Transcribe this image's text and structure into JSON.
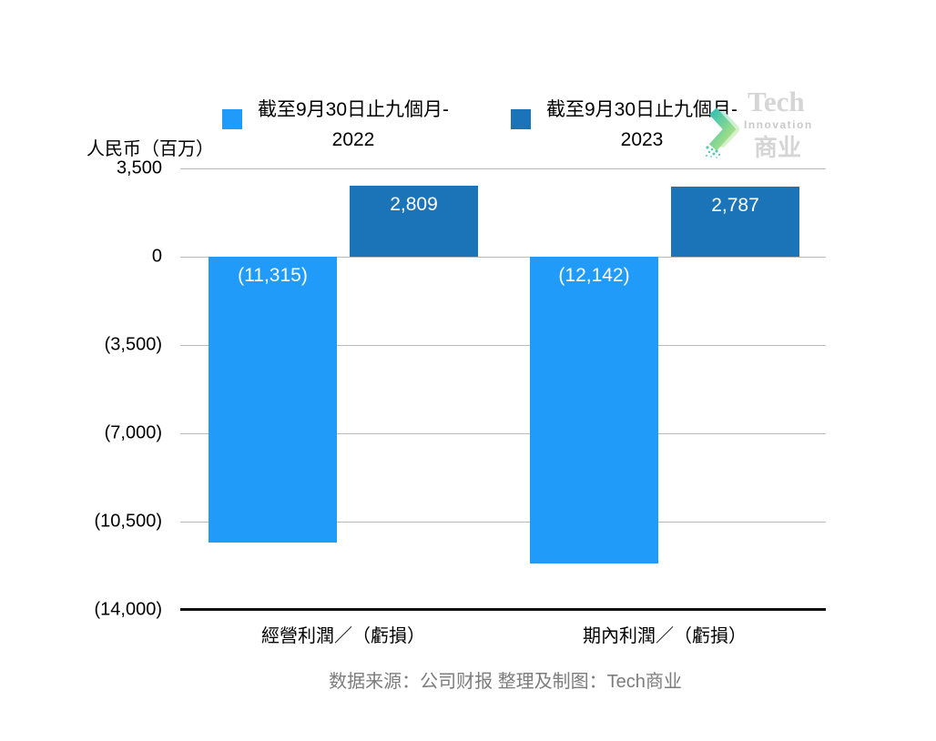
{
  "axis_title": "人民币（百万）",
  "legend": {
    "items": [
      {
        "label": "截至9月30日止九個月-\n2022",
        "color": "#219bfa"
      },
      {
        "label": "截至9月30日止九個月-\n2023",
        "color": "#1b74b8"
      }
    ]
  },
  "logo": {
    "line1": "Tech",
    "line2": "Innovation",
    "line3": "商业"
  },
  "source_note": "数据来源：公司财报 整理及制图：Tech商业",
  "colors": {
    "series_2022": "#219bfa",
    "series_2023": "#1b74b8",
    "gridline": "#b9b9b9",
    "axis_line": "#0d0d0d",
    "source_text": "#7c7c7c"
  },
  "chart_data": {
    "type": "bar",
    "categories": [
      "經營利潤／（虧損）",
      "期內利潤／（虧損）"
    ],
    "series": [
      {
        "name": "截至9月30日止九個月-2022",
        "color": "#219bfa",
        "values": [
          -11315,
          -12142
        ],
        "labels": [
          "(11,315)",
          "(12,142)"
        ]
      },
      {
        "name": "截至9月30日止九個月-2023",
        "color": "#1b74b8",
        "values": [
          2809,
          2787
        ],
        "labels": [
          "2,809",
          "2,787"
        ]
      }
    ],
    "ylabel": "人民币（百万）",
    "ylim": [
      -14000,
      3500
    ],
    "yticks": [
      3500,
      0,
      -3500,
      -7000,
      -10500,
      -14000
    ],
    "ytick_labels": [
      "3,500",
      "0",
      "(3,500)",
      "(7,000)",
      "(10,500)",
      "(14,000)"
    ],
    "grid": true,
    "legend_position": "top"
  }
}
